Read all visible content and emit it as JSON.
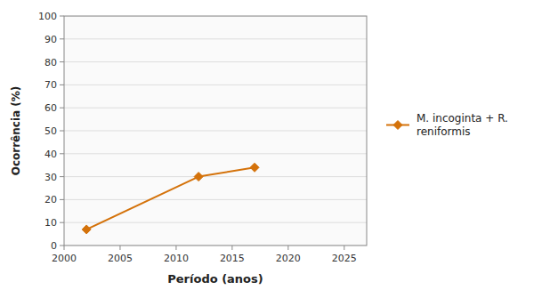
{
  "chart_data": {
    "type": "line",
    "x": [
      2002,
      2012,
      2017
    ],
    "series": [
      {
        "name": "M. incoginta + R.\nreniformis",
        "color": "#D4720A",
        "marker": "diamond",
        "values": [
          7,
          30,
          34
        ]
      }
    ],
    "x_label": "Período (anos)",
    "y_label": "Ocorrência (%)",
    "xlim": [
      2000,
      2027
    ],
    "ylim": [
      0,
      100
    ],
    "xticks": [
      2000,
      2005,
      2010,
      2015,
      2020,
      2025
    ],
    "yticks": [
      0,
      10,
      20,
      30,
      40,
      50,
      60,
      70,
      80,
      90,
      100
    ],
    "grid": "y",
    "legend": "right"
  }
}
